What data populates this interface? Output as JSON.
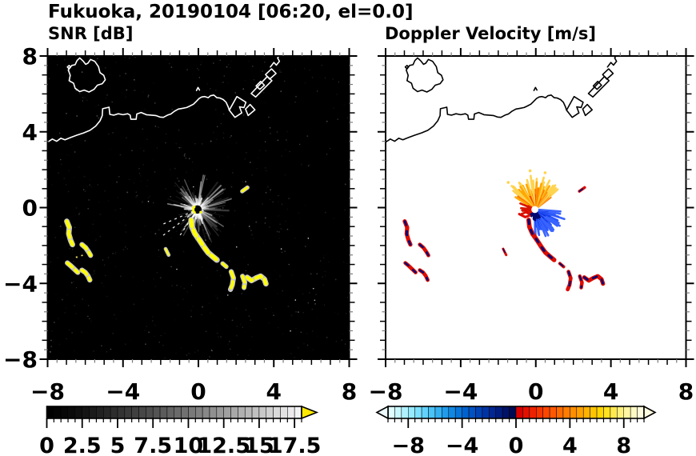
{
  "title": "Fukuoka, 20190104 [06:20, el=0.0]",
  "chart_data": {
    "type": "heatmap",
    "variant": "dual-panel radar PPI scan",
    "suptitle": "Fukuoka, 20190104 [06:20, el=0.0]",
    "station": "Fukuoka",
    "date": "20190104",
    "time": "06:20",
    "elevation_deg": 0.0,
    "panels": [
      {
        "id": "snr",
        "title": "SNR [dB]",
        "background": "#000000",
        "coast_color": "#ffffff",
        "x_range": [
          -8,
          8
        ],
        "y_range": [
          -8,
          8
        ],
        "x_ticks": [
          -8,
          -4,
          0,
          4,
          8
        ],
        "y_ticks": [
          8,
          4,
          0,
          -4,
          -8
        ],
        "x_tick_labels": [
          "−8",
          "−4",
          "0",
          "4",
          "8"
        ],
        "y_tick_labels": [
          "8",
          "4",
          "0",
          "−4",
          "−8"
        ],
        "colorbar": {
          "min": 0,
          "max": 18,
          "cell": 0.5,
          "scale": "grayscale black-to-white",
          "gamma": 1.25,
          "over_arrow_color": "#ffe800",
          "tick_values": [
            0,
            2.5,
            5,
            7.5,
            10,
            12.5,
            15,
            17.5
          ],
          "tick_labels": [
            "0",
            "2.5",
            "5",
            "7.5",
            "10",
            "12.5",
            "15",
            "17.5"
          ]
        }
      },
      {
        "id": "doppler",
        "title": "Doppler Velocity [m/s]",
        "background": "#ffffff",
        "coast_color": "#000000",
        "x_range": [
          -8,
          8
        ],
        "y_range": [
          -8,
          8
        ],
        "x_ticks": [
          -8,
          -4,
          0,
          4,
          8
        ],
        "y_ticks": [
          8,
          4,
          0,
          -4,
          -8
        ],
        "x_tick_labels": [
          "−8",
          "−4",
          "0",
          "4",
          "8"
        ],
        "y_tick_labels": [],
        "colorbar": {
          "min": -9.5,
          "max": 9.5,
          "cell": 0.5,
          "scale": "cyan-to-navy (negative) / red-to-pale-yellow (positive)",
          "under_arrow_color": "#eefcff",
          "over_arrow_color": "#fffbe0",
          "tick_values": [
            -8,
            -4,
            0,
            4,
            8
          ],
          "tick_labels": [
            "−8",
            "−4",
            "0",
            "4",
            "8"
          ],
          "neg_colors": [
            "#e0fdff",
            "#c8f8ff",
            "#b0f2ff",
            "#96eaff",
            "#7ce0ff",
            "#62d2fc",
            "#4ac2f7",
            "#34b0f1",
            "#209cea",
            "#1088e2",
            "#0674d8",
            "#0062ce",
            "#0052c2",
            "#0042b4",
            "#0034a4",
            "#002792",
            "#001c7e",
            "#001268",
            "#000a52"
          ],
          "pos_colors": [
            "#d60000",
            "#e31000",
            "#ee2200",
            "#f63400",
            "#fc4600",
            "#ff5800",
            "#ff6a00",
            "#ff7c00",
            "#ff8e00",
            "#ffa000",
            "#ffb200",
            "#ffc400",
            "#ffd600",
            "#ffe220",
            "#ffe950",
            "#fff07c",
            "#fff5a2",
            "#fff9c4",
            "#fffcde"
          ]
        }
      }
    ],
    "radar_center": [
      -0.05,
      -0.1
    ],
    "clutter_fan": {
      "seed": 7,
      "n_rays": 185,
      "r_max_km": 1.95,
      "dark_wedge_deg": [
        188,
        232
      ],
      "dashed_rays": [
        {
          "az_deg": 203,
          "r": 2.1
        },
        {
          "az_deg": 217,
          "r": 2.35
        },
        {
          "az_deg": 236,
          "r": 1.75
        }
      ]
    },
    "velocity_fans": [
      {
        "name": "away-updraft-orange",
        "az_deg": [
          38,
          148
        ],
        "n": 48,
        "r": [
          0.45,
          1.8
        ],
        "colors": [
          "#ee3c00",
          "#ff7800",
          "#ffa800",
          "#ffd34e"
        ]
      },
      {
        "name": "toward-blue",
        "az_deg": [
          -92,
          -6
        ],
        "n": 46,
        "r": [
          0.4,
          1.65
        ],
        "colors": [
          "#0026d0",
          "#1640ea",
          "#2c58fb",
          "#3a64ff"
        ]
      },
      {
        "name": "navy-core",
        "az_deg": [
          -135,
          -58
        ],
        "n": 14,
        "r": [
          0.22,
          0.6
        ],
        "colors": [
          "#000870"
        ]
      },
      {
        "name": "west-red",
        "az_deg": [
          152,
          212
        ],
        "n": 11,
        "r": [
          0.3,
          0.95
        ],
        "colors": [
          "#d81400"
        ]
      }
    ],
    "echo_streaks": [
      {
        "name": "west-arc-1",
        "w": 0.18,
        "pts": [
          [
            -6.98,
            -0.72
          ],
          [
            -6.85,
            -1.05
          ],
          [
            -6.88,
            -1.38
          ],
          [
            -6.78,
            -1.72
          ],
          [
            -6.68,
            -1.95
          ]
        ]
      },
      {
        "name": "west-hook-1",
        "w": 0.16,
        "pts": [
          [
            -6.18,
            -1.95
          ],
          [
            -5.98,
            -2.12
          ],
          [
            -5.82,
            -2.35
          ],
          [
            -5.72,
            -2.52
          ]
        ]
      },
      {
        "name": "west-arc-2",
        "w": 0.16,
        "pts": [
          [
            -6.95,
            -2.92
          ],
          [
            -6.78,
            -3.06
          ],
          [
            -6.58,
            -3.25
          ],
          [
            -6.4,
            -3.42
          ]
        ]
      },
      {
        "name": "west-hook-2",
        "w": 0.16,
        "pts": [
          [
            -6.18,
            -3.3
          ],
          [
            -6.0,
            -3.42
          ],
          [
            -5.86,
            -3.6
          ],
          [
            -5.76,
            -3.82
          ]
        ]
      },
      {
        "name": "main-streak",
        "w": 0.2,
        "pts": [
          [
            -0.38,
            -0.65
          ],
          [
            -0.34,
            -1.02
          ],
          [
            -0.18,
            -1.38
          ],
          [
            0.06,
            -1.72
          ],
          [
            0.3,
            -2.08
          ],
          [
            0.52,
            -2.38
          ],
          [
            0.78,
            -2.6
          ],
          [
            0.98,
            -2.76
          ]
        ]
      },
      {
        "name": "mid-segment",
        "w": 0.13,
        "pts": [
          [
            1.28,
            -2.95
          ],
          [
            1.48,
            -3.12
          ]
        ]
      },
      {
        "name": "south-hook",
        "w": 0.16,
        "pts": [
          [
            1.74,
            -3.38
          ],
          [
            1.86,
            -3.72
          ],
          [
            1.8,
            -4.08
          ],
          [
            1.7,
            -4.32
          ]
        ]
      },
      {
        "name": "south-band-hook",
        "w": 0.15,
        "pts": [
          [
            2.34,
            -3.62
          ],
          [
            2.46,
            -3.95
          ],
          [
            2.42,
            -4.22
          ]
        ]
      },
      {
        "name": "south-band",
        "w": 0.18,
        "pts": [
          [
            2.58,
            -3.68
          ],
          [
            2.82,
            -3.85
          ],
          [
            3.05,
            -3.72
          ],
          [
            3.3,
            -3.62
          ],
          [
            3.5,
            -3.78
          ],
          [
            3.58,
            -4.02
          ]
        ]
      },
      {
        "name": "ne-dash",
        "w": 0.11,
        "pts": [
          [
            2.32,
            0.86
          ],
          [
            2.6,
            1.06
          ]
        ]
      },
      {
        "name": "sw-dash",
        "w": 0.09,
        "pts": [
          [
            -1.74,
            -2.18
          ],
          [
            -1.58,
            -2.5
          ]
        ]
      }
    ],
    "doppler_only_echoes": [
      {
        "w": 0.13,
        "pts": [
          [
            -0.88,
            -0.34
          ],
          [
            -0.56,
            -0.5
          ],
          [
            -0.34,
            -0.42
          ]
        ]
      },
      {
        "w": 0.1,
        "pts": [
          [
            -0.62,
            -0.1
          ],
          [
            -0.44,
            -0.26
          ]
        ]
      }
    ],
    "snr_dotted_trail": {
      "pts": [
        [
          -6.5,
          -2.62
        ],
        [
          -5.98,
          -2.47
        ]
      ]
    },
    "coastline": {
      "island": [
        [
          -6.3,
          7.9
        ],
        [
          -6.12,
          7.74
        ],
        [
          -5.98,
          7.56
        ],
        [
          -5.86,
          7.62
        ],
        [
          -5.72,
          7.82
        ],
        [
          -5.5,
          7.72
        ],
        [
          -5.3,
          7.44
        ],
        [
          -5.22,
          7.12
        ],
        [
          -5.02,
          6.98
        ],
        [
          -4.94,
          6.74
        ],
        [
          -5.1,
          6.54
        ],
        [
          -5.36,
          6.46
        ],
        [
          -5.54,
          6.24
        ],
        [
          -5.8,
          6.1
        ],
        [
          -6.06,
          6.2
        ],
        [
          -6.3,
          6.12
        ],
        [
          -6.54,
          6.3
        ],
        [
          -6.62,
          6.56
        ],
        [
          -6.86,
          6.7
        ],
        [
          -6.8,
          6.98
        ],
        [
          -6.9,
          7.26
        ],
        [
          -6.72,
          7.5
        ],
        [
          -6.54,
          7.54
        ],
        [
          -6.44,
          7.76
        ],
        [
          -6.3,
          7.9
        ]
      ],
      "islet": [
        [
          -6.95,
          7.42
        ],
        [
          -6.86,
          7.5
        ],
        [
          -6.78,
          7.42
        ],
        [
          -6.88,
          7.34
        ],
        [
          -6.95,
          7.42
        ]
      ],
      "cape_mark": [
        [
          -0.1,
          6.18
        ],
        [
          -0.02,
          6.34
        ],
        [
          0.06,
          6.2
        ]
      ],
      "mainland": [
        [
          -8.05,
          3.42
        ],
        [
          -7.75,
          3.62
        ],
        [
          -7.52,
          3.5
        ],
        [
          -7.3,
          3.66
        ],
        [
          -7.08,
          3.58
        ],
        [
          -6.78,
          3.7
        ],
        [
          -6.45,
          3.82
        ],
        [
          -6.1,
          3.94
        ],
        [
          -5.75,
          4.08
        ],
        [
          -5.45,
          4.3
        ],
        [
          -5.22,
          4.58
        ],
        [
          -5.1,
          4.85
        ],
        [
          -5.08,
          5.22
        ],
        [
          -4.74,
          5.3
        ],
        [
          -4.7,
          4.92
        ],
        [
          -4.48,
          4.88
        ],
        [
          -4.25,
          4.95
        ],
        [
          -4.0,
          4.9
        ],
        [
          -3.75,
          4.95
        ],
        [
          -3.62,
          4.88
        ],
        [
          -3.58,
          4.66
        ],
        [
          -3.3,
          4.66
        ],
        [
          -3.27,
          4.94
        ],
        [
          -3.04,
          5.02
        ],
        [
          -2.76,
          4.9
        ],
        [
          -2.5,
          4.88
        ],
        [
          -2.26,
          4.86
        ],
        [
          -2.04,
          4.78
        ],
        [
          -1.86,
          4.76
        ],
        [
          -1.64,
          4.88
        ],
        [
          -1.46,
          4.94
        ],
        [
          -1.28,
          5.08
        ],
        [
          -1.06,
          5.2
        ],
        [
          -0.84,
          5.24
        ],
        [
          -0.62,
          5.28
        ],
        [
          -0.45,
          5.36
        ],
        [
          -0.26,
          5.46
        ],
        [
          -0.12,
          5.6
        ],
        [
          0.04,
          5.76
        ],
        [
          0.18,
          5.84
        ],
        [
          0.34,
          5.86
        ],
        [
          0.52,
          5.8
        ],
        [
          0.64,
          5.9
        ],
        [
          0.82,
          5.94
        ],
        [
          0.98,
          5.8
        ],
        [
          1.15,
          5.78
        ],
        [
          1.32,
          5.7
        ],
        [
          1.47,
          5.56
        ],
        [
          1.58,
          5.32
        ],
        [
          1.64,
          5.14
        ]
      ],
      "piers": [
        [
          [
            1.64,
            5.14
          ],
          [
            2.04,
            5.86
          ],
          [
            2.52,
            5.56
          ],
          [
            2.42,
            5.28
          ],
          [
            2.18,
            5.32
          ],
          [
            2.3,
            5.0
          ],
          [
            1.94,
            4.76
          ],
          [
            1.64,
            5.14
          ]
        ],
        [
          [
            2.5,
            5.2
          ],
          [
            2.74,
            5.44
          ],
          [
            3.0,
            5.16
          ],
          [
            2.64,
            4.86
          ],
          [
            2.5,
            5.2
          ]
        ],
        [
          [
            2.8,
            6.02
          ],
          [
            3.66,
            6.92
          ],
          [
            3.9,
            6.7
          ],
          [
            3.04,
            5.84
          ],
          [
            2.8,
            6.02
          ]
        ],
        [
          [
            3.06,
            6.42
          ],
          [
            3.3,
            6.66
          ],
          [
            3.5,
            6.46
          ],
          [
            3.26,
            6.24
          ],
          [
            3.06,
            6.42
          ]
        ],
        [
          [
            3.56,
            7.02
          ],
          [
            3.88,
            7.32
          ],
          [
            4.12,
            7.08
          ],
          [
            3.78,
            6.78
          ],
          [
            3.56,
            7.02
          ]
        ]
      ],
      "top_exit": [
        [
          3.82,
          7.42
        ],
        [
          4.0,
          7.66
        ],
        [
          4.14,
          7.52
        ],
        [
          4.3,
          7.72
        ],
        [
          4.2,
          7.9
        ],
        [
          4.35,
          8.1
        ]
      ]
    }
  }
}
